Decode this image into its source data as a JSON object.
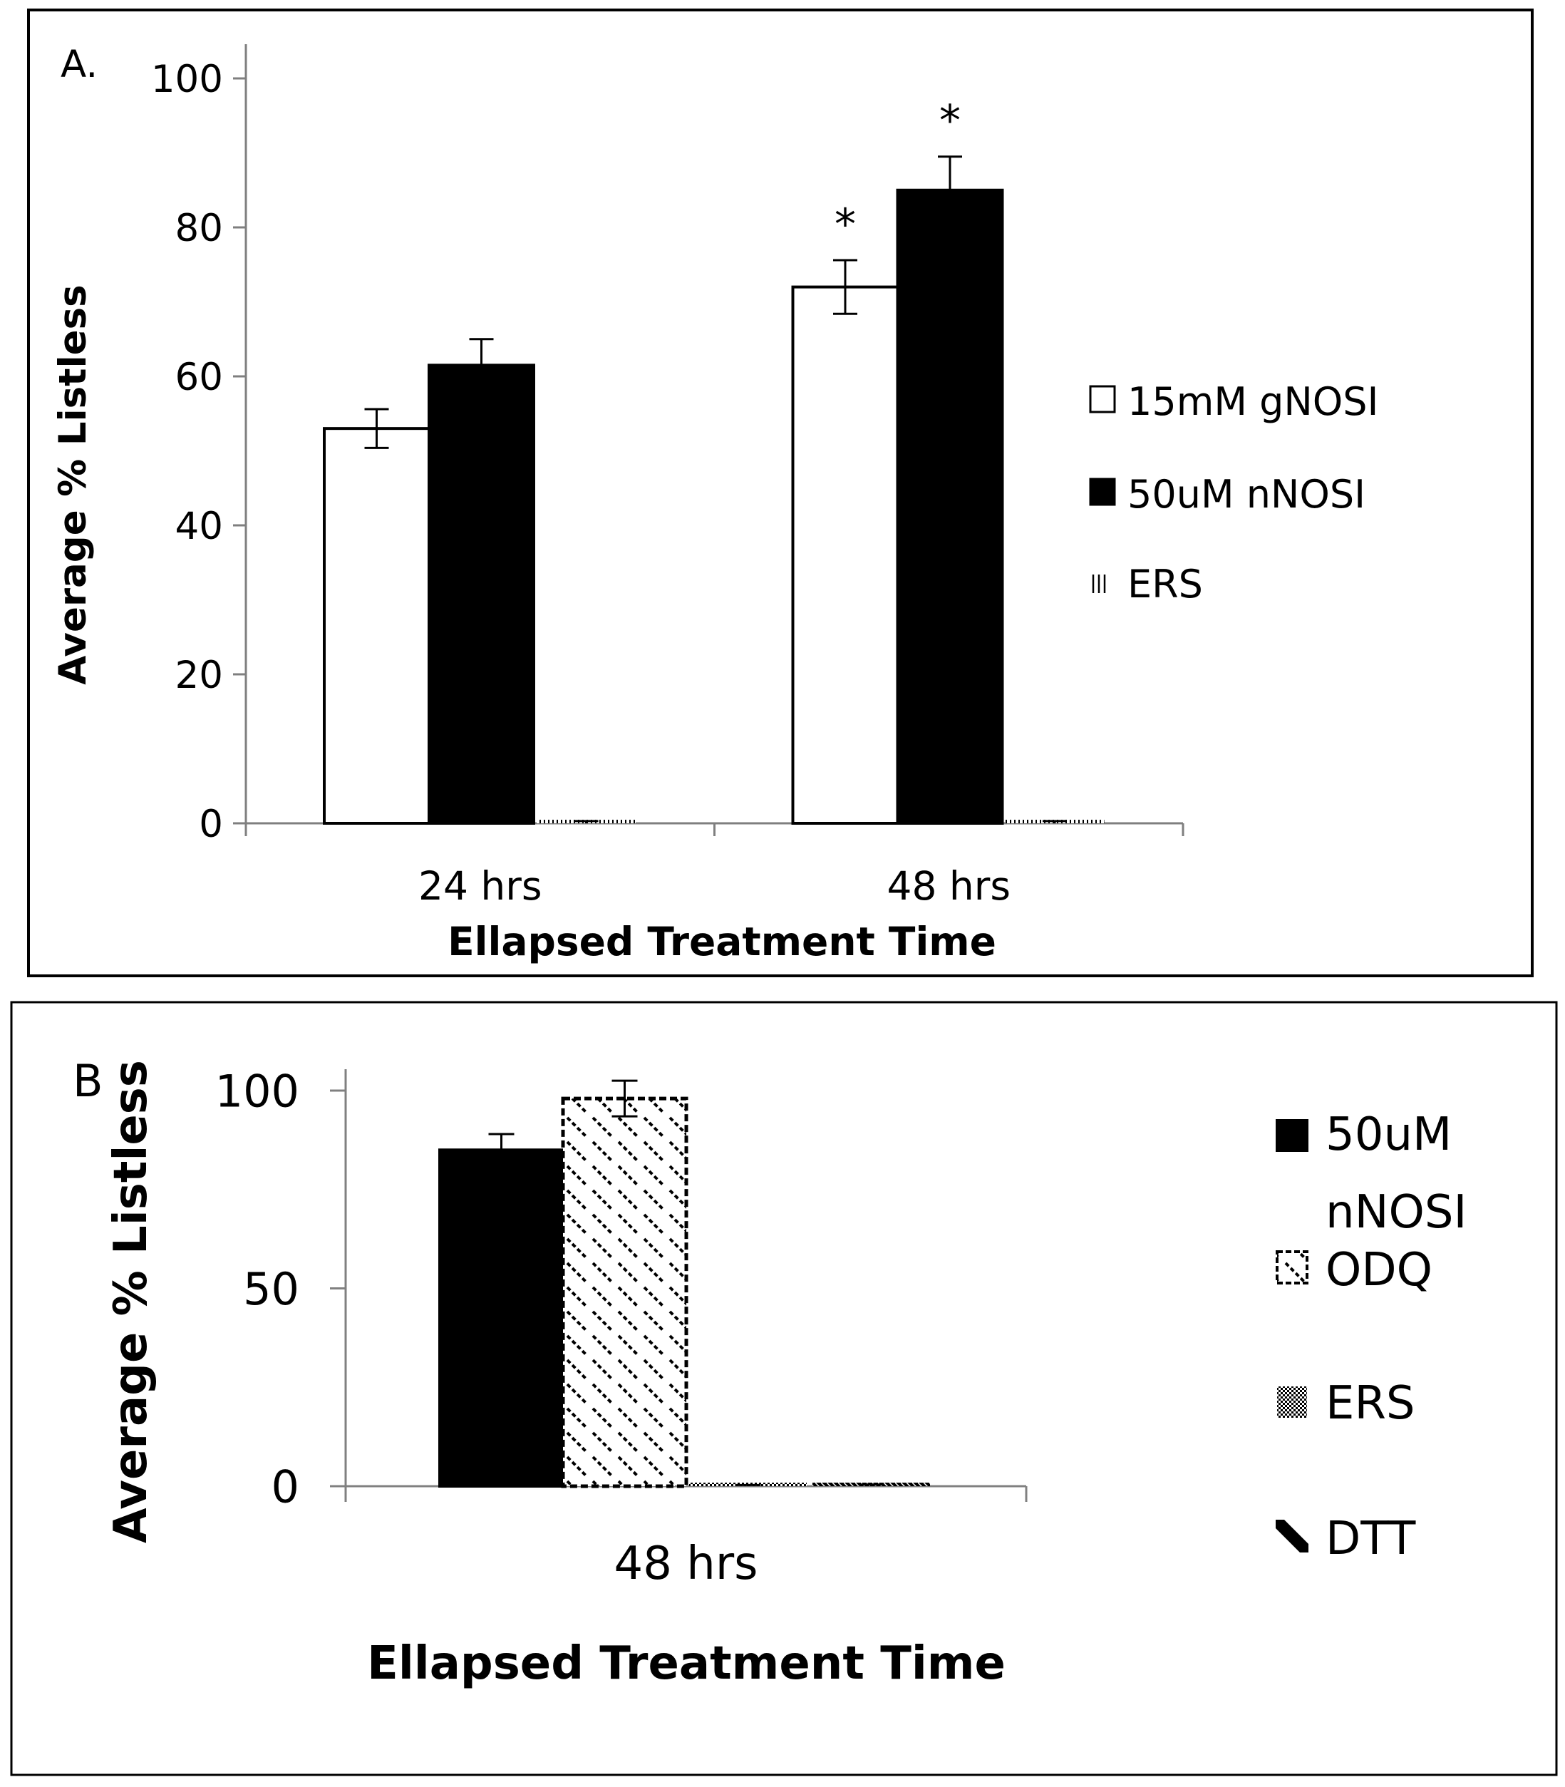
{
  "chart_data": [
    {
      "type": "bar",
      "panel_label": "A.",
      "title": "",
      "xlabel": "Ellapsed Treatment Time",
      "ylabel": "Average % Listless",
      "ylim": [
        0,
        100
      ],
      "yticks": [
        "0",
        "20",
        "40",
        "60",
        "80",
        "100"
      ],
      "categories": [
        "24 hrs",
        "48 hrs"
      ],
      "series": [
        {
          "name": "15mM gNOSI",
          "fill": "white",
          "values": [
            53,
            72
          ],
          "errors": [
            2.6,
            3.6
          ],
          "significance": [
            "",
            "*"
          ]
        },
        {
          "name": "50uM nNOSI",
          "fill": "black",
          "values": [
            61.5,
            85
          ],
          "errors": [
            3.5,
            4.5
          ],
          "significance": [
            "",
            "*"
          ]
        },
        {
          "name": "ERS",
          "fill": "vertical-lines",
          "values": [
            0,
            0
          ],
          "errors": [
            0.3,
            0.3
          ],
          "significance": [
            "",
            ""
          ]
        }
      ],
      "legend_position": "right"
    },
    {
      "type": "bar",
      "panel_label": "B",
      "title": "",
      "xlabel": "Ellapsed Treatment Time",
      "ylabel": "Average % Listless",
      "ylim": [
        0,
        100
      ],
      "yticks": [
        "0",
        "50",
        "100"
      ],
      "categories": [
        "48 hrs"
      ],
      "series": [
        {
          "name": "50uM nNOSI",
          "fill": "black",
          "values": [
            85
          ],
          "errors": [
            4
          ]
        },
        {
          "name": "ODQ",
          "fill": "diagonal-dashes",
          "values": [
            98
          ],
          "errors": [
            4.5
          ]
        },
        {
          "name": "ERS",
          "fill": "checker",
          "values": [
            0
          ],
          "errors": [
            0.3
          ]
        },
        {
          "name": "DTT",
          "fill": "diagonal-dark",
          "values": [
            0
          ],
          "errors": [
            0.4
          ]
        }
      ],
      "legend_position": "right"
    }
  ]
}
